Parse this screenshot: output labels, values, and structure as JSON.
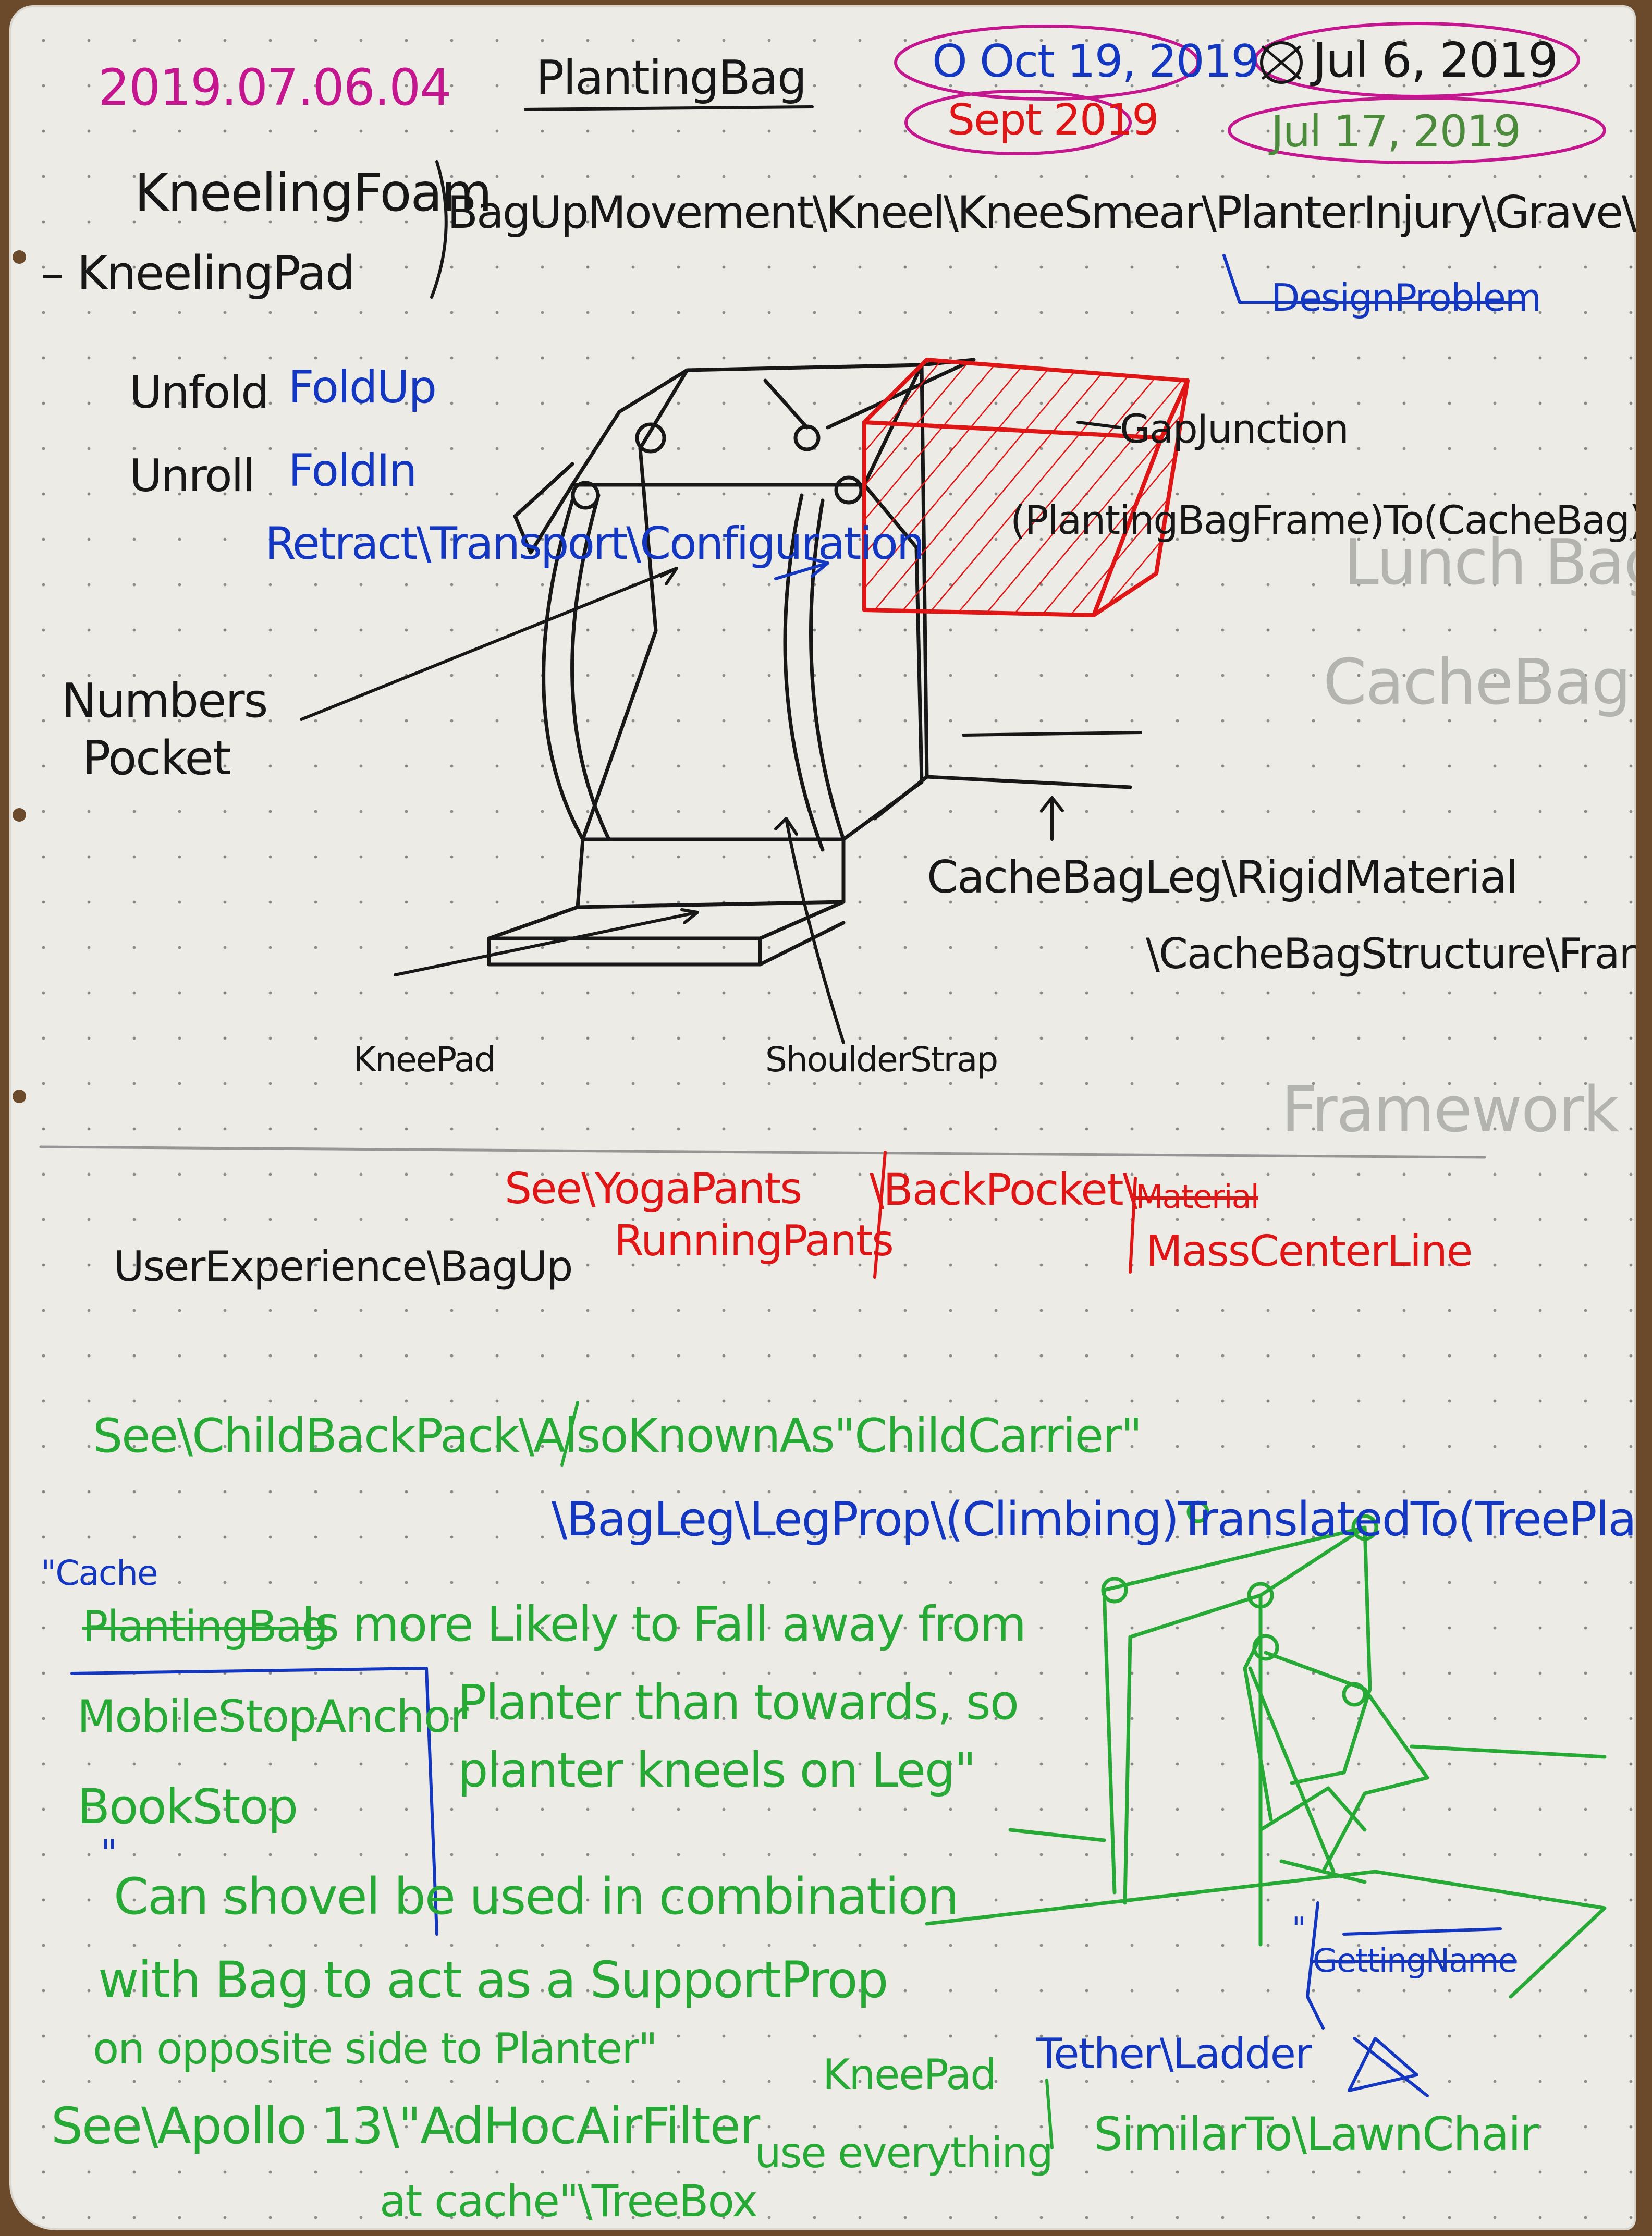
{
  "header": {
    "date_code": "2019.07.06.04",
    "title": "PlantingBag",
    "dates": {
      "oct": "O Oct 19, 2019",
      "jul6": "Jul 6, 2019",
      "sept": "Sept 2019",
      "jul17": "Jul 17, 2019"
    }
  },
  "terms": {
    "kneeling_foam": "KneelingFoam",
    "kneeling_pad": "– KneelingPad",
    "problem_list": "BagUpMovement\\Kneel\\KneeSmear\\PlanterInjury\\Grave\\Stab",
    "design_problem": "DesignProblem",
    "unfold": "Unfold",
    "unroll": "Unroll",
    "fold_up": "FoldUp",
    "fold_in": "FoldIn",
    "retract_config": "Retract\\Transport\\Configuration"
  },
  "sketch_labels": {
    "gap_junction": "GapJunction",
    "frame_to_cache": "(PlantingBagFrame)To(CacheBag)",
    "numbers_pocket_1": "Numbers",
    "numbers_pocket_2": "Pocket",
    "cache_bag_leg": "CacheBagLeg\\RigidMaterial",
    "cache_bag_structure": "\\CacheBagStructure\\Frame",
    "knee_pad": "KneePad",
    "shoulder_strap": "ShoulderStrap"
  },
  "red_notes": {
    "see_yoga": "See\\YogaPants",
    "running_pants": "RunningPants",
    "back_pocket": "\\BackPocket\\",
    "crossed_word": "Material",
    "mass_center": "MassCenterLine"
  },
  "user_experience": "UserExperience\\BagUp",
  "green_notes": {
    "see_child": "See\\ChildBackPack\\AlsoKnownAs\"ChildCarrier\"",
    "bag_leg": "\\BagLeg\\LegProp\\(Climbing)TranslatedTo(TreePlanting)",
    "cache_quote": "\"Cache",
    "crossed_planting": "PlantingBag",
    "fall_1": "Is more Likely to Fall away from",
    "fall_2": "Planter than towards, so",
    "fall_3": "planter kneels on Leg\"",
    "mobile_stop": "MobileStopAnchor",
    "book_stop": "BookStop",
    "open_quote": "\"",
    "shovel_1": "Can shovel be used in combination",
    "shovel_2": "with Bag to act as a SupportProp",
    "shovel_3": "on opposite side to Planter\"",
    "apollo_1": "See\\Apollo 13\\\"AdHocAirFilter",
    "use_everything": "use everything",
    "apollo_2": "at cache\"\\TreeBox",
    "knee_pad": "KneePad",
    "similar_to": "SimilarTo\\LawnChair"
  },
  "blue_notes": {
    "tether_ladder": "Tether\\Ladder",
    "getting_name": "GettingName",
    "quote_mark": "\""
  },
  "faint_bleed": {
    "lunch_bag": "Lunch Bag",
    "cache_bag": "CacheBag",
    "framework": "Framework"
  },
  "colors": {
    "paper": "#ecebe6",
    "black_ink": "#171717",
    "blue_ink": "#1437c2",
    "red_ink": "#e01515",
    "green_ink": "#27a935",
    "magenta_ink": "#c4168e",
    "dark_green_ink": "#4b8b3b"
  }
}
